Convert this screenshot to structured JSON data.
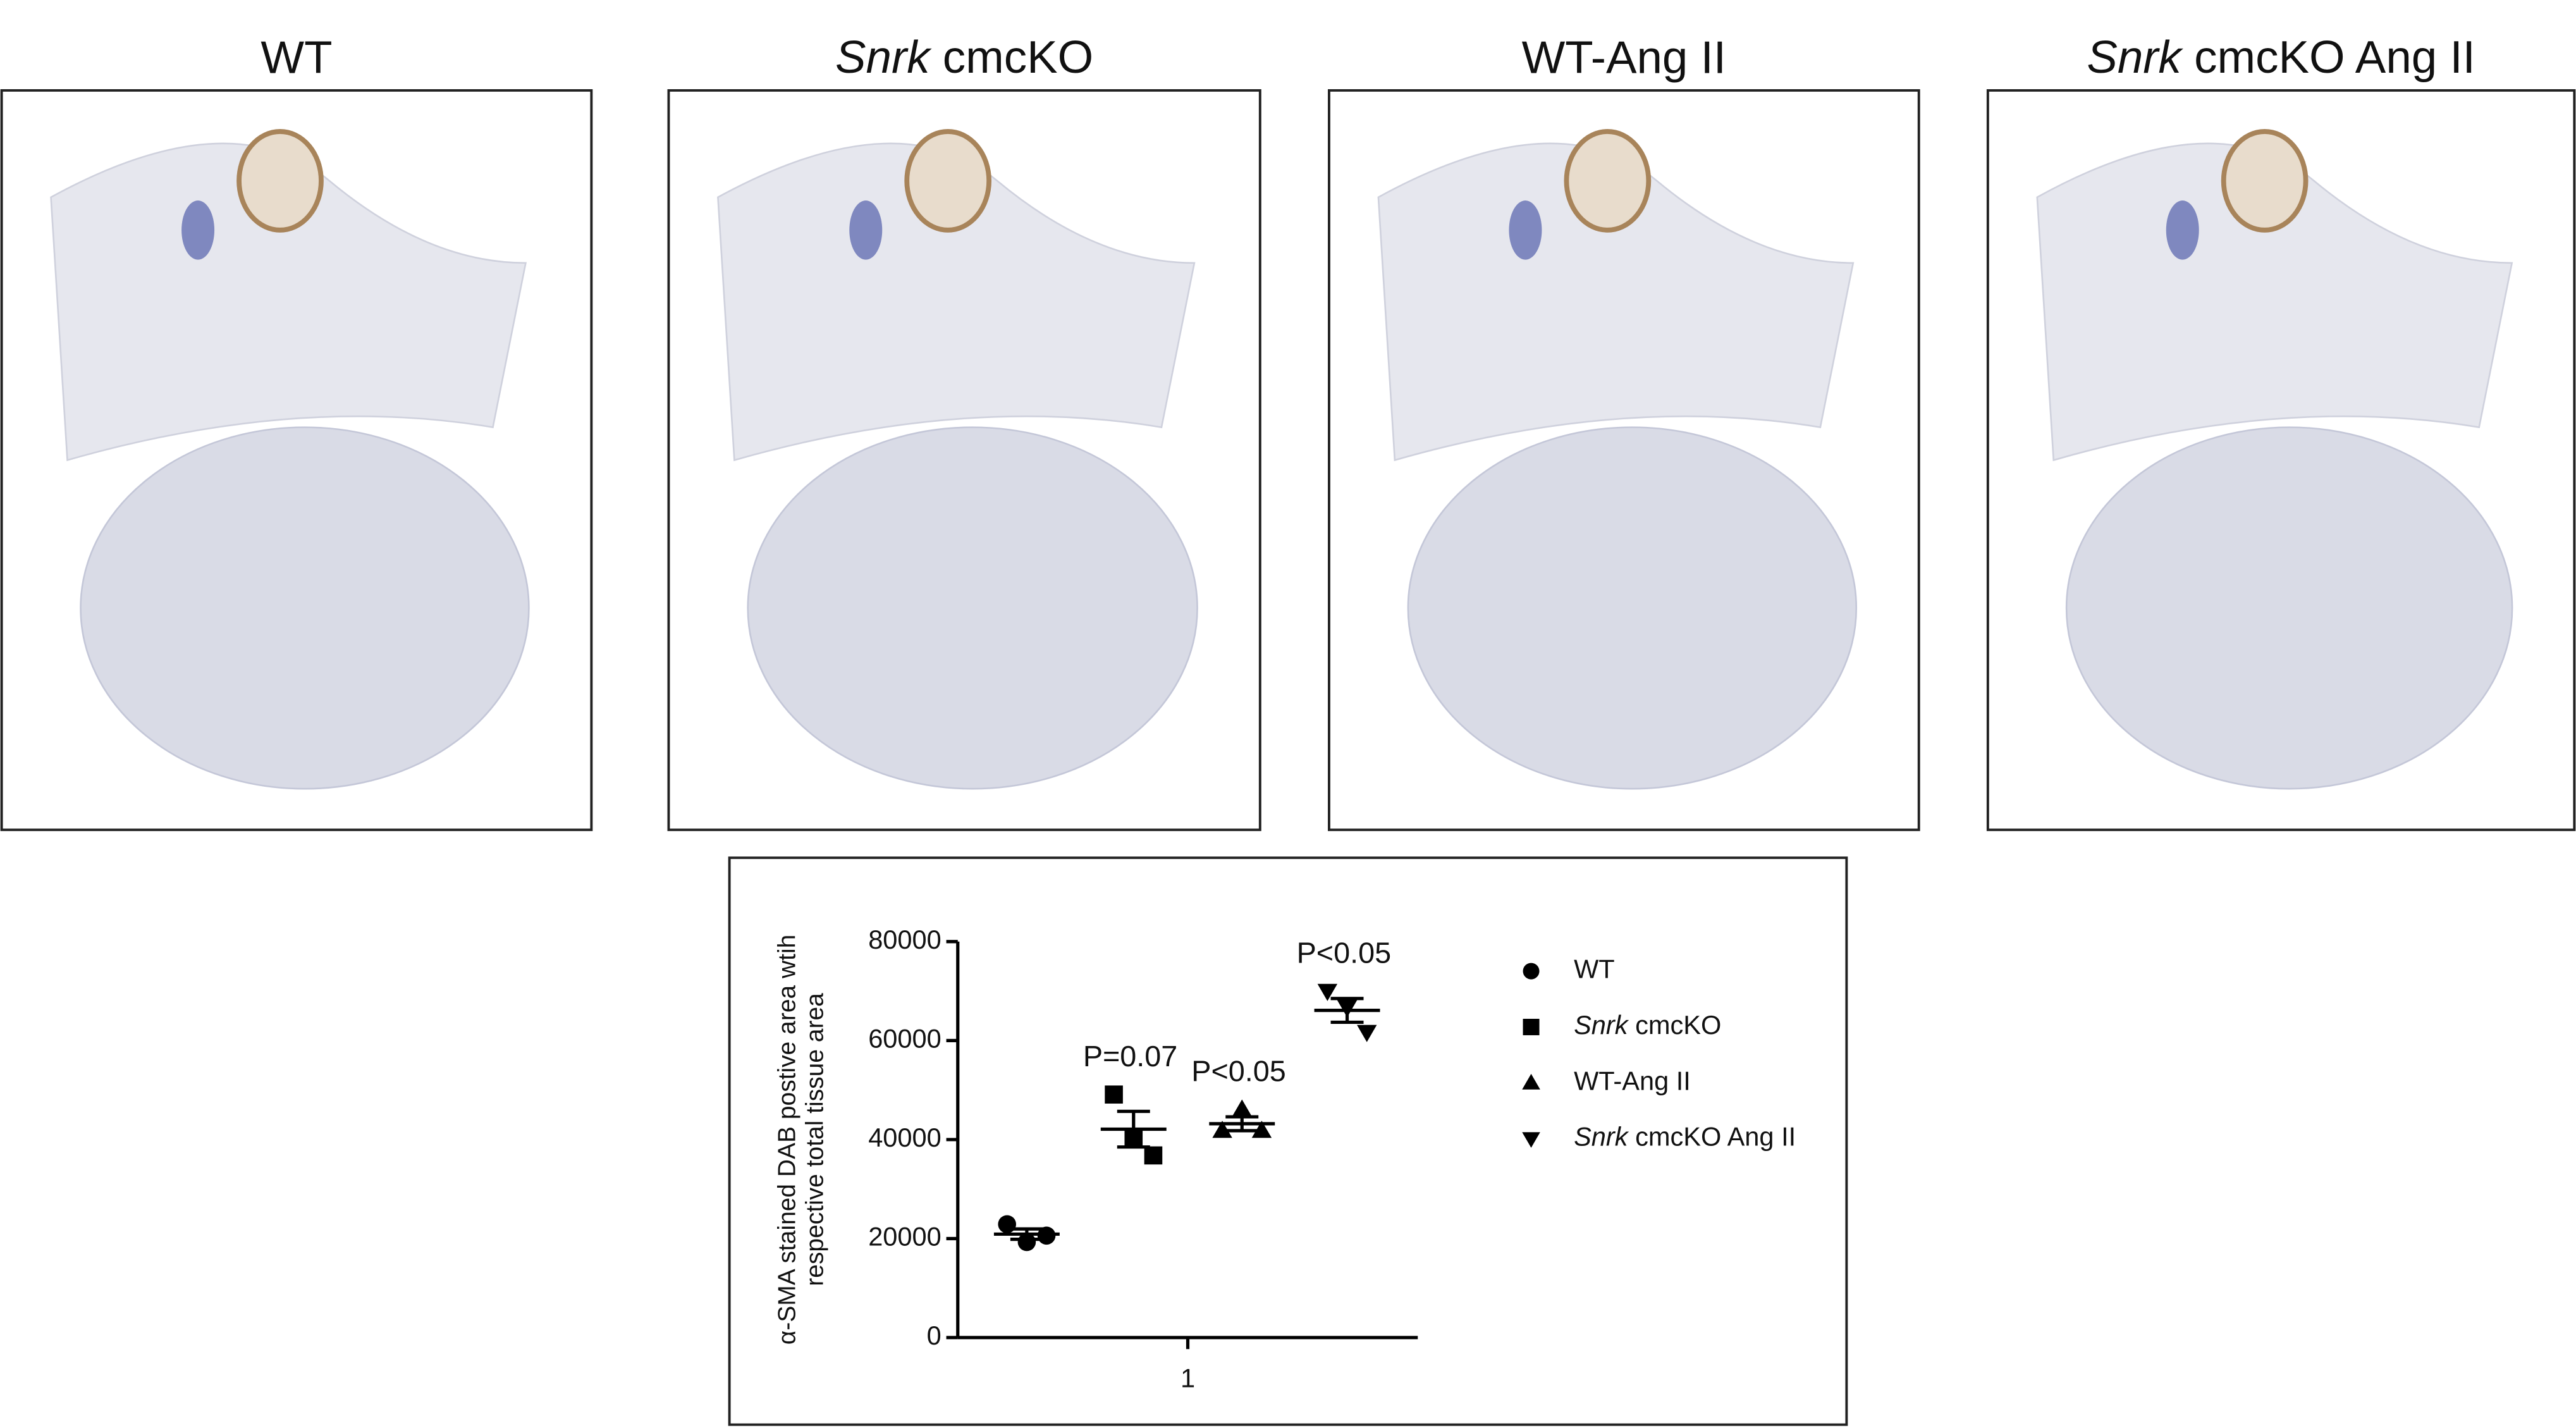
{
  "panels": [
    {
      "title": "WT",
      "italic_first_word": false
    },
    {
      "title": "Snrk cmcKO",
      "italic_first_word": true
    },
    {
      "title": "WT-Ang II",
      "italic_first_word": false
    },
    {
      "title": "Snrk cmcKO Ang II",
      "italic_first_word": true
    }
  ],
  "chart_data": {
    "type": "scatter",
    "y_label": [
      "α-SMA stained DAB postive area wtih",
      "respective total tissue area"
    ],
    "categories": [
      "1"
    ],
    "ylim": [
      0,
      80000
    ],
    "yticks": [
      0,
      20000,
      40000,
      60000,
      80000
    ],
    "series": [
      {
        "name": "WT",
        "italic_first_word": false,
        "marker": "circle",
        "color": "#000000",
        "values": [
          22900,
          19300,
          20600
        ],
        "mean": 20900,
        "sem": 1050
      },
      {
        "name": "Snrk cmcKO",
        "italic_first_word": true,
        "marker": "square",
        "color": "#000000",
        "values": [
          49100,
          40500,
          36800
        ],
        "mean": 42100,
        "sem": 3600
      },
      {
        "name": "WT-Ang II",
        "italic_first_word": false,
        "marker": "triangle",
        "color": "#000000",
        "values": [
          41800,
          46100,
          41800
        ],
        "mean": 43200,
        "sem": 1400
      },
      {
        "name": "Snrk cmcKO Ang II",
        "italic_first_word": true,
        "marker": "triangle-down",
        "color": "#000000",
        "values": [
          70000,
          66700,
          61700
        ],
        "mean": 66100,
        "sem": 2400
      }
    ],
    "annotations": [
      null,
      "P=0.07",
      "P<0.05",
      "P<0.05"
    ]
  }
}
